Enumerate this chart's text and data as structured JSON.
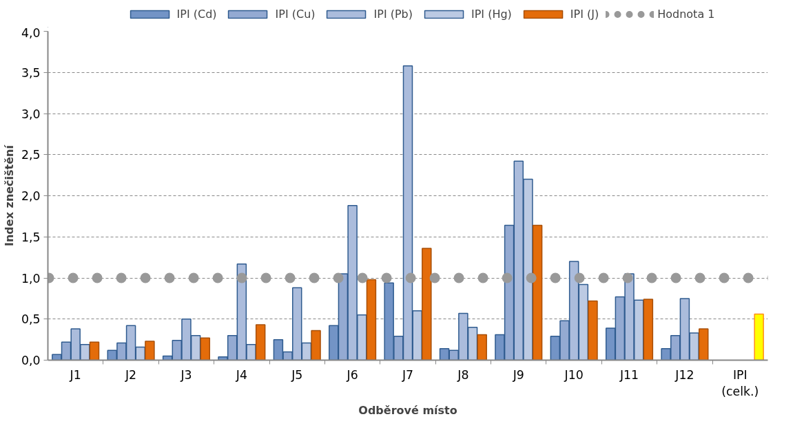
{
  "chart_data": {
    "type": "bar",
    "xlabel": "Odběrové místo",
    "ylabel": "Index znečištění",
    "categories": [
      "J1",
      "J2",
      "J3",
      "J4",
      "J5",
      "J6",
      "J7",
      "J8",
      "J9",
      "J10",
      "J11",
      "J12",
      "IPI (celk.)"
    ],
    "series": [
      {
        "name": "IPI (Cd)",
        "color": "#7394c6",
        "values": [
          0.07,
          0.12,
          0.05,
          0.04,
          0.25,
          0.42,
          0.94,
          0.14,
          0.31,
          0.29,
          0.39,
          0.14,
          null
        ]
      },
      {
        "name": "IPI (Cu)",
        "color": "#94aad2",
        "values": [
          0.22,
          0.21,
          0.24,
          0.3,
          0.1,
          1.05,
          0.29,
          0.12,
          1.64,
          0.48,
          0.77,
          0.3,
          null
        ]
      },
      {
        "name": "IPI (Pb)",
        "color": "#abbcdc",
        "values": [
          0.38,
          0.42,
          0.5,
          1.17,
          0.88,
          1.88,
          3.58,
          0.57,
          2.42,
          1.2,
          1.05,
          0.75,
          null
        ]
      },
      {
        "name": "IPI (Hg)",
        "color": "#bccae3",
        "values": [
          0.19,
          0.16,
          0.3,
          0.19,
          0.21,
          0.55,
          0.6,
          0.4,
          2.2,
          0.92,
          0.73,
          0.33,
          null
        ]
      },
      {
        "name": "IPI (J)",
        "color": "#e46c0a",
        "colors": [
          "#e46c0a",
          "#e46c0a",
          "#e46c0a",
          "#e46c0a",
          "#e46c0a",
          "#e46c0a",
          "#e46c0a",
          "#e46c0a",
          "#e46c0a",
          "#e46c0a",
          "#e46c0a",
          "#e46c0a",
          "#ffff00"
        ],
        "values": [
          0.22,
          0.23,
          0.27,
          0.43,
          0.36,
          0.98,
          1.36,
          0.31,
          1.64,
          0.72,
          0.74,
          0.38,
          0.56
        ]
      }
    ],
    "ref_lines": [
      {
        "axis": "y",
        "value": 1,
        "label": "Hodnota 1",
        "color": "#999999",
        "line_style": "dotted"
      }
    ],
    "ylim": [
      0,
      4
    ],
    "yticks": [
      {
        "value": 0,
        "label": "0,0"
      },
      {
        "value": 0.5,
        "label": "0,5"
      },
      {
        "value": 1,
        "label": "1,0"
      },
      {
        "value": 1.5,
        "label": "1,5"
      },
      {
        "value": 2,
        "label": "2,0"
      },
      {
        "value": 2.5,
        "label": "2,5"
      },
      {
        "value": 3,
        "label": "3,0"
      },
      {
        "value": 3.5,
        "label": "3,5"
      },
      {
        "value": 4,
        "label": "4,0"
      }
    ],
    "grid": "y",
    "legend": "top"
  }
}
